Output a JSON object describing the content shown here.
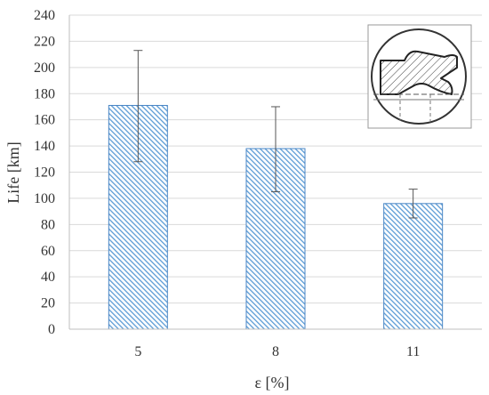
{
  "chart_data": {
    "type": "bar",
    "categories": [
      "5",
      "8",
      "11"
    ],
    "values": [
      171,
      138,
      96
    ],
    "error_high": [
      213,
      170,
      107
    ],
    "error_low": [
      128,
      105,
      85
    ],
    "xlabel": "ε [%]",
    "ylabel": "Life [km]",
    "ylim": [
      0,
      240
    ],
    "yticks": [
      0,
      20,
      40,
      60,
      80,
      100,
      120,
      140,
      160,
      180,
      200,
      220,
      240
    ],
    "grid": true,
    "bar_fill_color": "#5b9bd5",
    "bar_edge_color": "#4a86c5",
    "inset": {
      "icon": "seal-cross-section-drawing"
    }
  }
}
